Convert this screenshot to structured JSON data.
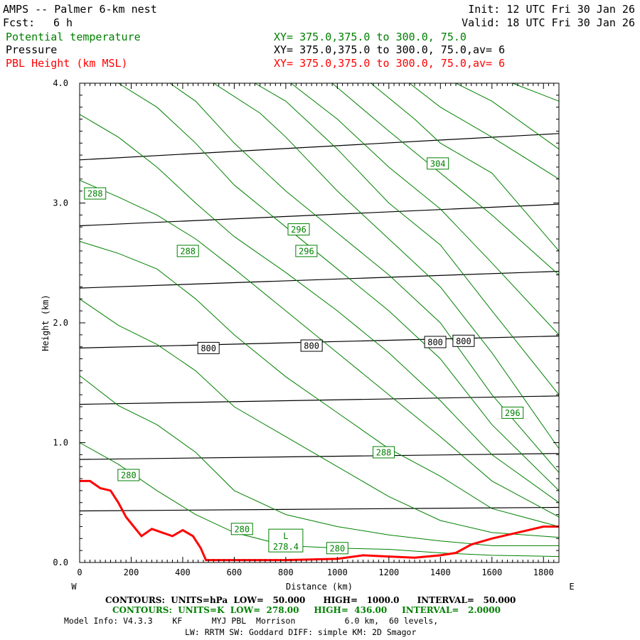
{
  "header": {
    "title": "AMPS -- Palmer 6-km nest",
    "fcst_label": "Fcst:",
    "fcst_value": "6 h",
    "init": "Init: 12 UTC Fri 30 Jan 26",
    "valid": "Valid: 18 UTC Fri 30 Jan 26",
    "fields": [
      {
        "name": "Potential temperature",
        "xy": "XY= 375.0,375.0 to 300.0, 75.0",
        "color": "#008000"
      },
      {
        "name": "Pressure",
        "xy": "XY= 375.0,375.0 to 300.0, 75.0,av=  6",
        "color": "#000000"
      },
      {
        "name": "PBL Height (km MSL)",
        "xy": "XY= 375.0,375.0 to 300.0, 75.0,av=  6",
        "color": "#ff0000"
      }
    ]
  },
  "chart_data": {
    "type": "line",
    "xlabel": "Distance (km)",
    "ylabel": "Height (km)",
    "xlim": [
      0,
      1860
    ],
    "ylim": [
      0,
      4.0
    ],
    "x_ticks": [
      0,
      200,
      400,
      600,
      800,
      1000,
      1200,
      1400,
      1600,
      1800
    ],
    "y_ticks": [
      "0.0",
      "1.0",
      "2.0",
      "3.0",
      "4.0"
    ],
    "left_end": "W",
    "right_end": "E",
    "pressure_contours": [
      {
        "points": [
          [
            0,
            0.43
          ],
          [
            1860,
            0.46
          ]
        ]
      },
      {
        "points": [
          [
            0,
            0.86
          ],
          [
            1860,
            0.91
          ]
        ]
      },
      {
        "points": [
          [
            0,
            1.32
          ],
          [
            1860,
            1.39
          ]
        ]
      },
      {
        "points": [
          [
            0,
            1.79
          ],
          [
            1860,
            1.89
          ]
        ]
      },
      {
        "points": [
          [
            0,
            2.29
          ],
          [
            1860,
            2.43
          ]
        ]
      },
      {
        "points": [
          [
            0,
            2.81
          ],
          [
            1860,
            2.99
          ]
        ]
      },
      {
        "points": [
          [
            0,
            3.36
          ],
          [
            1860,
            3.58
          ]
        ]
      }
    ],
    "pressure_labels": [
      {
        "text": "800",
        "x": 500,
        "y": 1.79
      },
      {
        "text": "800",
        "x": 900,
        "y": 1.81
      },
      {
        "text": "800",
        "x": 1380,
        "y": 1.84
      },
      {
        "text": "800",
        "x": 1490,
        "y": 1.85
      }
    ],
    "theta_contours": [
      {
        "points": [
          [
            0,
            1.0
          ],
          [
            150,
            0.82
          ],
          [
            300,
            0.6
          ],
          [
            450,
            0.4
          ],
          [
            600,
            0.25
          ],
          [
            800,
            0.14
          ],
          [
            1000,
            0.12
          ],
          [
            1200,
            0.11
          ],
          [
            1400,
            0.08
          ],
          [
            1600,
            0.06
          ],
          [
            1860,
            0.05
          ]
        ]
      },
      {
        "points": [
          [
            0,
            1.56
          ],
          [
            150,
            1.31
          ],
          [
            300,
            1.15
          ],
          [
            450,
            0.92
          ],
          [
            600,
            0.6
          ],
          [
            800,
            0.4
          ],
          [
            1000,
            0.3
          ],
          [
            1200,
            0.23
          ],
          [
            1400,
            0.18
          ],
          [
            1600,
            0.14
          ],
          [
            1860,
            0.14
          ]
        ]
      },
      {
        "points": [
          [
            0,
            2.2
          ],
          [
            150,
            1.98
          ],
          [
            300,
            1.82
          ],
          [
            450,
            1.6
          ],
          [
            600,
            1.3
          ],
          [
            800,
            1.05
          ],
          [
            1000,
            0.8
          ],
          [
            1200,
            0.55
          ],
          [
            1400,
            0.35
          ],
          [
            1600,
            0.25
          ],
          [
            1860,
            0.21
          ]
        ]
      },
      {
        "points": [
          [
            0,
            2.68
          ],
          [
            150,
            2.58
          ],
          [
            300,
            2.45
          ],
          [
            450,
            2.2
          ],
          [
            600,
            1.9
          ],
          [
            800,
            1.55
          ],
          [
            1000,
            1.25
          ],
          [
            1200,
            0.95
          ],
          [
            1400,
            0.72
          ],
          [
            1600,
            0.45
          ],
          [
            1860,
            0.3
          ]
        ]
      },
      {
        "points": [
          [
            0,
            3.19
          ],
          [
            150,
            3.05
          ],
          [
            300,
            2.9
          ],
          [
            450,
            2.7
          ],
          [
            600,
            2.45
          ],
          [
            800,
            2.1
          ],
          [
            1000,
            1.75
          ],
          [
            1200,
            1.4
          ],
          [
            1400,
            1.05
          ],
          [
            1600,
            0.68
          ],
          [
            1860,
            0.38
          ]
        ]
      },
      {
        "points": [
          [
            0,
            3.74
          ],
          [
            150,
            3.55
          ],
          [
            300,
            3.3
          ],
          [
            450,
            3.0
          ],
          [
            600,
            2.72
          ],
          [
            800,
            2.42
          ],
          [
            1000,
            2.1
          ],
          [
            1200,
            1.75
          ],
          [
            1400,
            1.35
          ],
          [
            1600,
            0.9
          ],
          [
            1860,
            0.5
          ]
        ]
      },
      {
        "points": [
          [
            150,
            4.0
          ],
          [
            300,
            3.8
          ],
          [
            450,
            3.5
          ],
          [
            600,
            3.15
          ],
          [
            800,
            2.8
          ],
          [
            1000,
            2.45
          ],
          [
            1200,
            2.1
          ],
          [
            1400,
            1.7
          ],
          [
            1600,
            1.15
          ],
          [
            1860,
            0.6
          ]
        ]
      },
      {
        "points": [
          [
            350,
            4.0
          ],
          [
            450,
            3.85
          ],
          [
            600,
            3.5
          ],
          [
            800,
            3.1
          ],
          [
            1000,
            2.75
          ],
          [
            1200,
            2.4
          ],
          [
            1400,
            2.0
          ],
          [
            1600,
            1.4
          ],
          [
            1860,
            0.75
          ]
        ]
      },
      {
        "points": [
          [
            520,
            4.0
          ],
          [
            700,
            3.75
          ],
          [
            800,
            3.55
          ],
          [
            1000,
            3.1
          ],
          [
            1200,
            2.7
          ],
          [
            1400,
            2.3
          ],
          [
            1600,
            1.75
          ],
          [
            1860,
            0.95
          ]
        ]
      },
      {
        "points": [
          [
            680,
            4.0
          ],
          [
            800,
            3.85
          ],
          [
            1000,
            3.45
          ],
          [
            1200,
            3.0
          ],
          [
            1400,
            2.65
          ],
          [
            1600,
            2.1
          ],
          [
            1860,
            1.4
          ]
        ]
      },
      {
        "points": [
          [
            820,
            4.0
          ],
          [
            1000,
            3.7
          ],
          [
            1200,
            3.3
          ],
          [
            1400,
            2.95
          ],
          [
            1600,
            2.5
          ],
          [
            1860,
            1.9
          ]
        ]
      },
      {
        "points": [
          [
            980,
            4.0
          ],
          [
            1200,
            3.6
          ],
          [
            1400,
            3.25
          ],
          [
            1600,
            2.9
          ],
          [
            1860,
            2.4
          ]
        ]
      },
      {
        "points": [
          [
            1130,
            4.0
          ],
          [
            1300,
            3.7
          ],
          [
            1400,
            3.5
          ],
          [
            1600,
            3.25
          ],
          [
            1860,
            2.6
          ]
        ]
      },
      {
        "points": [
          [
            1280,
            4.0
          ],
          [
            1400,
            3.8
          ],
          [
            1600,
            3.55
          ],
          [
            1860,
            3.2
          ]
        ]
      },
      {
        "points": [
          [
            1460,
            4.0
          ],
          [
            1600,
            3.85
          ],
          [
            1860,
            3.45
          ]
        ]
      },
      {
        "points": [
          [
            1680,
            4.0
          ],
          [
            1860,
            3.85
          ]
        ]
      }
    ],
    "theta_labels": [
      {
        "text": "288",
        "x": 60,
        "y": 3.08
      },
      {
        "text": "288",
        "x": 420,
        "y": 2.6
      },
      {
        "text": "296",
        "x": 850,
        "y": 2.78
      },
      {
        "text": "296",
        "x": 880,
        "y": 2.6
      },
      {
        "text": "304",
        "x": 1390,
        "y": 3.33
      },
      {
        "text": "296",
        "x": 1680,
        "y": 1.25
      },
      {
        "text": "288",
        "x": 1180,
        "y": 0.92
      },
      {
        "text": "280",
        "x": 190,
        "y": 0.73
      },
      {
        "text": "280",
        "x": 630,
        "y": 0.28
      },
      {
        "text": "280",
        "x": 1000,
        "y": 0.12
      }
    ],
    "low_marker": {
      "text": "L",
      "value": "278.4",
      "x": 800,
      "y": 0.1
    },
    "pbl_height": [
      [
        0,
        0.68
      ],
      [
        40,
        0.68
      ],
      [
        80,
        0.62
      ],
      [
        120,
        0.6
      ],
      [
        150,
        0.5
      ],
      [
        180,
        0.38
      ],
      [
        210,
        0.3
      ],
      [
        240,
        0.22
      ],
      [
        280,
        0.28
      ],
      [
        320,
        0.25
      ],
      [
        360,
        0.22
      ],
      [
        400,
        0.27
      ],
      [
        440,
        0.22
      ],
      [
        470,
        0.12
      ],
      [
        490,
        0.02
      ],
      [
        800,
        0.02
      ],
      [
        1000,
        0.03
      ],
      [
        1100,
        0.06
      ],
      [
        1200,
        0.05
      ],
      [
        1300,
        0.04
      ],
      [
        1400,
        0.06
      ],
      [
        1460,
        0.08
      ],
      [
        1520,
        0.15
      ],
      [
        1600,
        0.2
      ],
      [
        1700,
        0.25
      ],
      [
        1800,
        0.3
      ],
      [
        1860,
        0.3
      ]
    ]
  },
  "footer": {
    "line1": "CONTOURS:  UNITS=hPa  LOW=   50.000      HIGH=   1000.0      INTERVAL=   50.000",
    "line2": "CONTOURS:  UNITS=K  LOW=  278.00     HIGH=  436.00     INTERVAL=   2.0000",
    "line3": "Model Info: V4.3.3    KF      MYJ PBL  Morrison          6.0 km,  60 levels,",
    "line4": "LW: RRTM SW: Goddard DIFF: simple KM: 2D Smagor"
  },
  "colors": {
    "theta": "#008000",
    "pressure": "#000000",
    "pbl": "#ff0000"
  }
}
